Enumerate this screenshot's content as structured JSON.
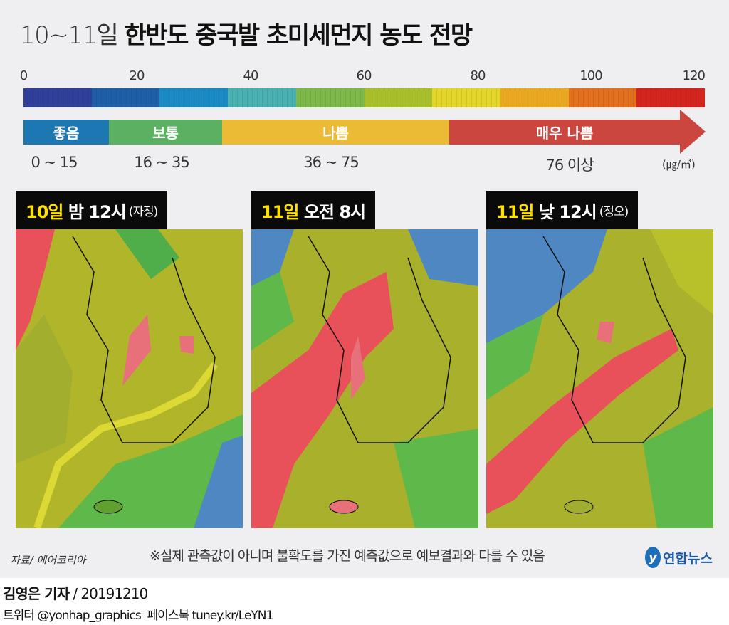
{
  "title": {
    "dates": "10~11일",
    "main": "한반도 중국발 초미세먼지 농도 전망"
  },
  "scale": {
    "ticks": [
      "0",
      "20",
      "40",
      "60",
      "80",
      "100",
      "120"
    ],
    "colors": [
      "#303f9a",
      "#1f5fa8",
      "#1a8ac4",
      "#4ab0b0",
      "#7fb84a",
      "#a9bf2a",
      "#e3d52a",
      "#eaa820",
      "#e2701e",
      "#d4241e"
    ]
  },
  "categories": [
    {
      "label": "좋음",
      "range": "0 ~ 15",
      "color": "#1c77b3"
    },
    {
      "label": "보통",
      "range": "16 ~ 35",
      "color": "#5cb061"
    },
    {
      "label": "나쁨",
      "range": "36 ~ 75",
      "color": "#ecbb36"
    },
    {
      "label": "매우 나쁨",
      "range": "76 이상",
      "color": "#cc4640"
    }
  ],
  "unit": "(㎍/㎥)",
  "panels": [
    {
      "day": "10일",
      "time": "밤 12시",
      "sub": "(자정)"
    },
    {
      "day": "11일",
      "time": "오전 8시",
      "sub": ""
    },
    {
      "day": "11일",
      "time": "낮 12시",
      "sub": "(정오)"
    }
  ],
  "footer": {
    "source": "자료/ 에어코리아",
    "note": "※실제 관측값이 아니며 불확도를 가진 예측값으로 예보결과와 다를 수 있음",
    "logo": "연합뉴스",
    "reporter": "김영은 기자",
    "date": "/ 20191210",
    "twitter": "트위터 @yonhap_graphics",
    "facebook": "페이스북 tuney.kr/LeYN1"
  }
}
